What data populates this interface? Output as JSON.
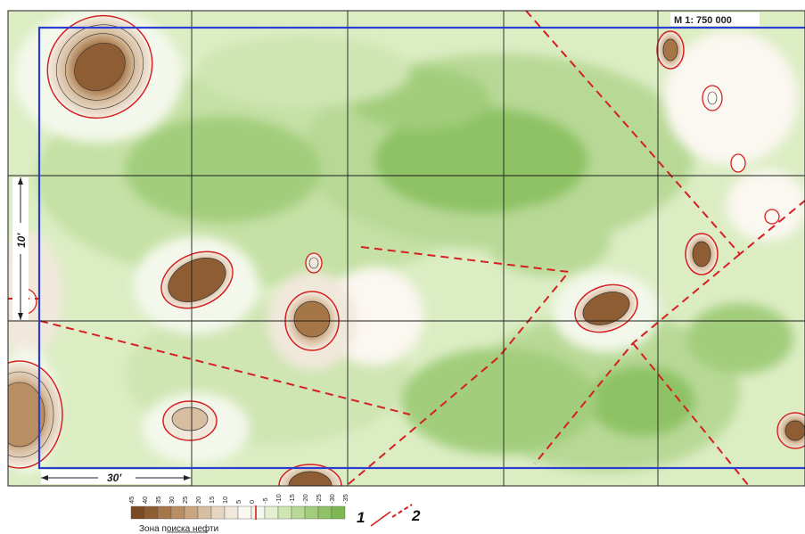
{
  "map": {
    "scale_label": "М 1: 750 000",
    "lon_interval_label": "30'",
    "lat_interval_label": "10'",
    "colors": {
      "background": "#ffffff",
      "grid": "#222222",
      "frame": "#2a3fd1",
      "contour_red": "#d42020",
      "fault": "#d42020",
      "ramp": [
        "#7a4a24",
        "#8f5d33",
        "#a57648",
        "#b98e62",
        "#caa680",
        "#d8bea0",
        "#e6d5c0",
        "#f1e8dc",
        "#fbf7f1",
        "#f4f8ec",
        "#e3efcf",
        "#cfe5b2",
        "#b8d996",
        "#a2cd7c",
        "#8ec265",
        "#7eb853"
      ]
    }
  },
  "legend": {
    "ticks": [
      "45",
      "40",
      "35",
      "30",
      "25",
      "20",
      "15",
      "10",
      "5",
      "0",
      "-5",
      "-10",
      "-15",
      "-20",
      "-25",
      "-30",
      "-35"
    ],
    "item_1": "1",
    "item_2": "2",
    "caption": "Зона поиска нефти"
  }
}
